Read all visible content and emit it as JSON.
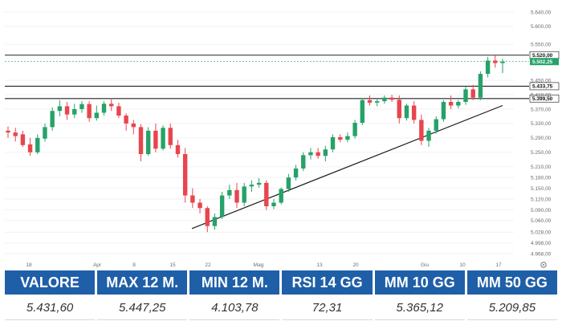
{
  "chart_data": {
    "type": "candlestick",
    "x_tick_labels": [
      "18",
      "Apr",
      "8",
      "15",
      "22",
      "Mag",
      "13",
      "20",
      "Giu",
      "10",
      "17"
    ],
    "y_tick_labels": [
      "5.640,00",
      "5.600,00",
      "5.550,00",
      "5.450,00",
      "5.410,00",
      "5.370,00",
      "5.330,00",
      "5.290,00",
      "5.250,00",
      "5.210,00",
      "5.180,00",
      "5.150,00",
      "5.120,00",
      "5.090,00",
      "5.060,00",
      "5.028,00",
      "4.998,00",
      "4.968,00"
    ],
    "ylim": [
      4955,
      5660
    ],
    "horizontal_levels": [
      {
        "value": 5520.0,
        "label": "5.520,00"
      },
      {
        "value": 5433.75,
        "label": "5.433,75"
      },
      {
        "value": 5399.5,
        "label": "5.399,50"
      }
    ],
    "last_price_label": "5.502,25",
    "last_price_value": 5502.25,
    "trendline": {
      "start": {
        "index": 45,
        "value": 5038
      },
      "end": {
        "index": 121,
        "value": 5380
      }
    },
    "candles": [
      {
        "o": 5310,
        "h": 5322,
        "l": 5290,
        "c": 5305
      },
      {
        "o": 5305,
        "h": 5318,
        "l": 5280,
        "c": 5295
      },
      {
        "o": 5300,
        "h": 5310,
        "l": 5265,
        "c": 5270
      },
      {
        "o": 5272,
        "h": 5290,
        "l": 5240,
        "c": 5250
      },
      {
        "o": 5250,
        "h": 5300,
        "l": 5245,
        "c": 5290
      },
      {
        "o": 5288,
        "h": 5330,
        "l": 5280,
        "c": 5320
      },
      {
        "o": 5320,
        "h": 5375,
        "l": 5310,
        "c": 5365
      },
      {
        "o": 5365,
        "h": 5395,
        "l": 5350,
        "c": 5378
      },
      {
        "o": 5378,
        "h": 5390,
        "l": 5340,
        "c": 5355
      },
      {
        "o": 5355,
        "h": 5385,
        "l": 5345,
        "c": 5370
      },
      {
        "o": 5370,
        "h": 5392,
        "l": 5360,
        "c": 5384
      },
      {
        "o": 5384,
        "h": 5392,
        "l": 5335,
        "c": 5345
      },
      {
        "o": 5345,
        "h": 5380,
        "l": 5338,
        "c": 5360
      },
      {
        "o": 5360,
        "h": 5392,
        "l": 5352,
        "c": 5385
      },
      {
        "o": 5385,
        "h": 5400,
        "l": 5365,
        "c": 5378
      },
      {
        "o": 5378,
        "h": 5388,
        "l": 5345,
        "c": 5352
      },
      {
        "o": 5352,
        "h": 5358,
        "l": 5310,
        "c": 5330
      },
      {
        "o": 5330,
        "h": 5340,
        "l": 5300,
        "c": 5320
      },
      {
        "o": 5320,
        "h": 5328,
        "l": 5225,
        "c": 5245
      },
      {
        "o": 5245,
        "h": 5320,
        "l": 5240,
        "c": 5310
      },
      {
        "o": 5310,
        "h": 5330,
        "l": 5250,
        "c": 5260
      },
      {
        "o": 5260,
        "h": 5325,
        "l": 5255,
        "c": 5318
      },
      {
        "o": 5318,
        "h": 5330,
        "l": 5260,
        "c": 5270
      },
      {
        "o": 5270,
        "h": 5285,
        "l": 5235,
        "c": 5245
      },
      {
        "o": 5245,
        "h": 5262,
        "l": 5110,
        "c": 5130
      },
      {
        "o": 5130,
        "h": 5150,
        "l": 5095,
        "c": 5110
      },
      {
        "o": 5110,
        "h": 5120,
        "l": 5080,
        "c": 5095
      },
      {
        "o": 5095,
        "h": 5100,
        "l": 5028,
        "c": 5045
      },
      {
        "o": 5045,
        "h": 5080,
        "l": 5035,
        "c": 5070
      },
      {
        "o": 5070,
        "h": 5140,
        "l": 5065,
        "c": 5130
      },
      {
        "o": 5130,
        "h": 5160,
        "l": 5120,
        "c": 5145
      },
      {
        "o": 5145,
        "h": 5165,
        "l": 5095,
        "c": 5110
      },
      {
        "o": 5110,
        "h": 5165,
        "l": 5100,
        "c": 5155
      },
      {
        "o": 5155,
        "h": 5172,
        "l": 5140,
        "c": 5160
      },
      {
        "o": 5160,
        "h": 5178,
        "l": 5152,
        "c": 5165
      },
      {
        "o": 5165,
        "h": 5172,
        "l": 5090,
        "c": 5100
      },
      {
        "o": 5100,
        "h": 5120,
        "l": 5092,
        "c": 5110
      },
      {
        "o": 5110,
        "h": 5152,
        "l": 5105,
        "c": 5148
      },
      {
        "o": 5148,
        "h": 5190,
        "l": 5140,
        "c": 5180
      },
      {
        "o": 5180,
        "h": 5215,
        "l": 5172,
        "c": 5205
      },
      {
        "o": 5205,
        "h": 5250,
        "l": 5198,
        "c": 5242
      },
      {
        "o": 5242,
        "h": 5262,
        "l": 5230,
        "c": 5250
      },
      {
        "o": 5250,
        "h": 5262,
        "l": 5232,
        "c": 5240
      },
      {
        "o": 5240,
        "h": 5268,
        "l": 5225,
        "c": 5258
      },
      {
        "o": 5258,
        "h": 5300,
        "l": 5250,
        "c": 5292
      },
      {
        "o": 5292,
        "h": 5300,
        "l": 5278,
        "c": 5285
      },
      {
        "o": 5285,
        "h": 5305,
        "l": 5278,
        "c": 5295
      },
      {
        "o": 5295,
        "h": 5340,
        "l": 5288,
        "c": 5332
      },
      {
        "o": 5332,
        "h": 5400,
        "l": 5325,
        "c": 5395
      },
      {
        "o": 5395,
        "h": 5408,
        "l": 5380,
        "c": 5388
      },
      {
        "o": 5388,
        "h": 5400,
        "l": 5378,
        "c": 5392
      },
      {
        "o": 5392,
        "h": 5408,
        "l": 5385,
        "c": 5402
      },
      {
        "o": 5402,
        "h": 5410,
        "l": 5390,
        "c": 5396
      },
      {
        "o": 5396,
        "h": 5408,
        "l": 5330,
        "c": 5345
      },
      {
        "o": 5345,
        "h": 5385,
        "l": 5338,
        "c": 5380
      },
      {
        "o": 5380,
        "h": 5392,
        "l": 5330,
        "c": 5340
      },
      {
        "o": 5340,
        "h": 5355,
        "l": 5270,
        "c": 5282
      },
      {
        "o": 5282,
        "h": 5318,
        "l": 5265,
        "c": 5310
      },
      {
        "o": 5310,
        "h": 5350,
        "l": 5302,
        "c": 5342
      },
      {
        "o": 5342,
        "h": 5395,
        "l": 5335,
        "c": 5390
      },
      {
        "o": 5390,
        "h": 5408,
        "l": 5370,
        "c": 5380
      },
      {
        "o": 5380,
        "h": 5395,
        "l": 5372,
        "c": 5390
      },
      {
        "o": 5390,
        "h": 5432,
        "l": 5382,
        "c": 5425
      },
      {
        "o": 5425,
        "h": 5438,
        "l": 5395,
        "c": 5402
      },
      {
        "o": 5402,
        "h": 5475,
        "l": 5395,
        "c": 5468
      },
      {
        "o": 5468,
        "h": 5515,
        "l": 5458,
        "c": 5505
      },
      {
        "o": 5505,
        "h": 5520,
        "l": 5485,
        "c": 5498
      },
      {
        "o": 5498,
        "h": 5510,
        "l": 5470,
        "c": 5502
      }
    ]
  },
  "stats": {
    "headers": [
      "VALORE",
      "MAX 12 M.",
      "MIN 12 M.",
      "RSI 14 GG",
      "MM 10 GG",
      "MM 50 GG"
    ],
    "values": [
      "5.431,60",
      "5.447,25",
      "4.103,78",
      "72,31",
      "5.365,12",
      "5.209,85"
    ]
  },
  "colors": {
    "up": "#26a269",
    "down": "#e8454d",
    "level_line": "#222222",
    "trendline": "#1a1a1a",
    "header_bg": "#1f5fa8"
  },
  "icons": {
    "axis_settings": "settings-icon"
  }
}
